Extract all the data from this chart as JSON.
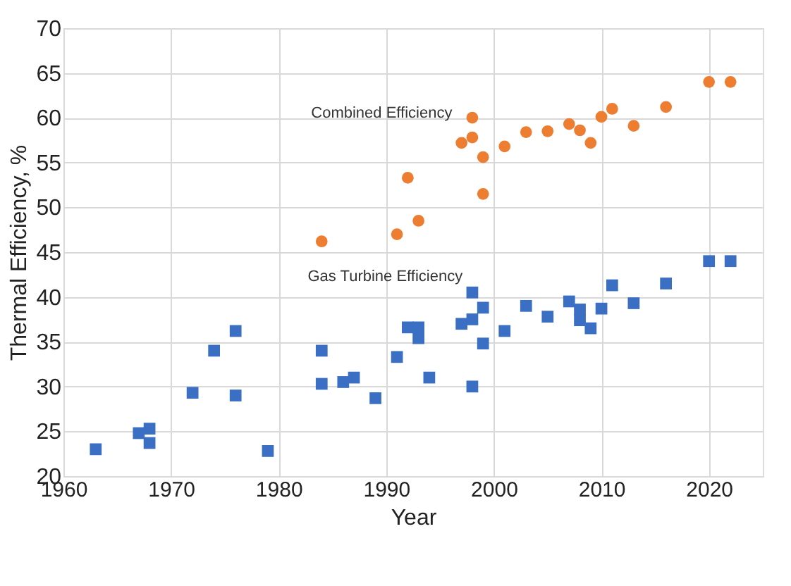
{
  "chart_data": {
    "type": "scatter",
    "xlabel": "Year",
    "ylabel": "Thermal Efficiency, %",
    "xlim": [
      1960,
      2025
    ],
    "xticks": [
      1960,
      1970,
      1980,
      1990,
      2000,
      2010,
      2020
    ],
    "ylim": [
      20,
      70
    ],
    "yticks": [
      20,
      25,
      30,
      35,
      40,
      45,
      50,
      55,
      60,
      65,
      70
    ],
    "grid": true,
    "series": [
      {
        "color": "#3a6fc4",
        "marker": "square",
        "x": [
          1963,
          1967,
          1968,
          1968,
          1972,
          1974,
          1976,
          1976,
          1979,
          1984,
          1984,
          1986,
          1987,
          1989,
          1991,
          1992,
          1993,
          1993,
          1994,
          1997,
          1998,
          1998,
          1998,
          1999,
          1999,
          2001,
          2003,
          2005,
          2007,
          2008,
          2008,
          2009,
          2010,
          2011,
          2013,
          2016,
          2020,
          2022
        ],
        "values": [
          23.0,
          24.8,
          25.3,
          23.7,
          29.3,
          34.0,
          36.2,
          29.0,
          22.8,
          34.0,
          30.3,
          30.5,
          31.0,
          28.7,
          33.3,
          36.6,
          36.6,
          35.4,
          31.0,
          37.0,
          40.5,
          37.5,
          30.0,
          38.8,
          34.8,
          36.2,
          39.0,
          37.8,
          39.5,
          38.6,
          37.4,
          36.5,
          38.7,
          41.3,
          39.3,
          41.5,
          44.0,
          44.0
        ]
      },
      {
        "color": "#ed7d31",
        "marker": "circle",
        "x": [
          1984,
          1991,
          1992,
          1993,
          1997,
          1998,
          1998,
          1999,
          1999,
          2001,
          2003,
          2005,
          2007,
          2008,
          2009,
          2010,
          2011,
          2013,
          2016,
          2020,
          2022
        ],
        "values": [
          46.2,
          47.0,
          53.3,
          48.5,
          57.2,
          57.8,
          60.0,
          55.6,
          51.5,
          56.8,
          58.4,
          58.5,
          59.3,
          58.6,
          57.2,
          60.1,
          61.0,
          59.1,
          61.2,
          64.0,
          64.0
        ]
      }
    ],
    "annotations": [
      "Combined Efficiency",
      "Gas Turbine Efficiency"
    ]
  }
}
